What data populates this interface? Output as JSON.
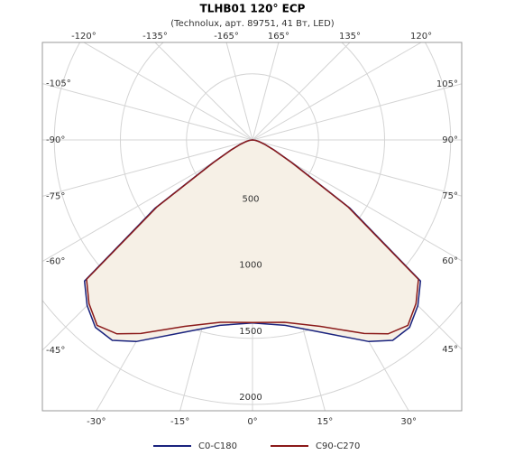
{
  "chart_data": {
    "type": "polar",
    "title": "TLHB01 120° ECP",
    "subtitle": "(Technolux, арт. 89751, 41 Вт, LED)",
    "angles": [
      0,
      10,
      20,
      30,
      35,
      40,
      45,
      50,
      55,
      60,
      65,
      70,
      75,
      80,
      85,
      90
    ],
    "series": [
      {
        "name": "C0-C180",
        "color": "#1a237e",
        "values": [
          1384,
          1424,
          1550,
          1760,
          1850,
          1850,
          1770,
          1660,
          900,
          350,
          180,
          100,
          55,
          30,
          12,
          0
        ]
      },
      {
        "name": "C90-C270",
        "color": "#8b1a1a",
        "values": [
          1380,
          1400,
          1500,
          1690,
          1790,
          1830,
          1750,
          1640,
          880,
          340,
          175,
          98,
          54,
          29,
          12,
          0
        ]
      }
    ],
    "fill_color": "#f6f0e6",
    "rlim": [
      0,
      2000
    ],
    "rticks": [
      500,
      1000,
      1500,
      2000
    ],
    "angle_ticks": [
      {
        "value": -120,
        "label": "-120°"
      },
      {
        "value": -135,
        "label": "-135°"
      },
      {
        "value": -165,
        "label": "-165°"
      },
      {
        "value": 165,
        "label": "165°"
      },
      {
        "value": 135,
        "label": "135°"
      },
      {
        "value": 120,
        "label": "120°"
      },
      {
        "value": -105,
        "label": "-105°"
      },
      {
        "value": -90,
        "label": "-90°"
      },
      {
        "value": -75,
        "label": "-75°"
      },
      {
        "value": -60,
        "label": "-60°"
      },
      {
        "value": -45,
        "label": "-45°"
      },
      {
        "value": 105,
        "label": "105°"
      },
      {
        "value": 90,
        "label": "90°"
      },
      {
        "value": 75,
        "label": "75°"
      },
      {
        "value": 60,
        "label": "60°"
      },
      {
        "value": 45,
        "label": "45°"
      },
      {
        "value": -30,
        "label": "-30°"
      },
      {
        "value": -15,
        "label": "-15°"
      },
      {
        "value": 0,
        "label": "0°"
      },
      {
        "value": 15,
        "label": "15°"
      },
      {
        "value": 30,
        "label": "30°"
      }
    ]
  }
}
